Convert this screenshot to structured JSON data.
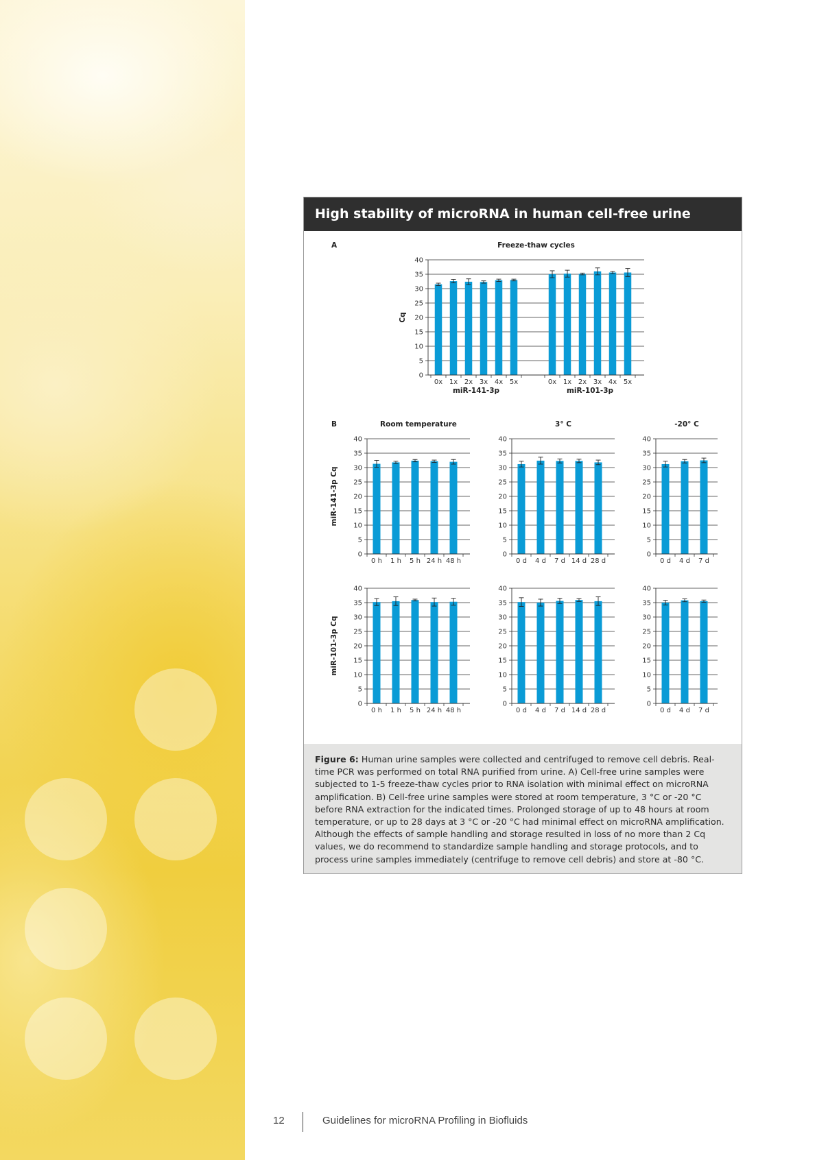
{
  "figure": {
    "header": "High stability of microRNA in human cell-free urine",
    "caption_label": "Figure 6:",
    "caption_text": " Human urine samples were collected and centrifuged to remove cell debris. Real-time PCR was performed on total RNA purified from urine. A) Cell-free urine samples were subjected to 1-5 freeze-thaw cycles prior to RNA isolation with minimal effect on microRNA amplification. B) Cell-free urine samples were stored at room temperature, 3 °C or -20 °C before RNA extraction for the indicated times. Prolonged storage of up to 48 hours at room temperature, or up to 28 days at 3 °C or -20 °C had minimal effect on microRNA amplification. Although the effects of sample handling and storage resulted in loss of no more than 2 Cq values, we do recommend to standardize sample handling and storage protocols, and to process urine samples immediately (centrifuge to remove cell debris) and store at -80 °C."
  },
  "footer": {
    "page_number": "12",
    "doc_title": "Guidelines for microRNA Profiling in Biofluids"
  },
  "colors": {
    "bar": "#0a9bd6",
    "header_bg": "#2f2f2f",
    "caption_bg": "#e4e4e3"
  },
  "chart_data": [
    {
      "id": "A",
      "panel_label": "A",
      "type": "bar",
      "title": "Freeze-thaw cycles",
      "ylabel": "Cq",
      "ylim": [
        0,
        40
      ],
      "yticks": [
        0,
        5,
        10,
        15,
        20,
        25,
        30,
        35,
        40
      ],
      "grid": true,
      "groups": [
        {
          "name": "miR-141-3p",
          "categories": [
            "0x",
            "1x",
            "2x",
            "3x",
            "4x",
            "5x"
          ],
          "values": [
            31.5,
            32.6,
            32.4,
            32.3,
            32.9,
            33.0
          ],
          "errors": [
            0.4,
            0.6,
            1.0,
            0.4,
            0.4,
            0.3
          ]
        },
        {
          "name": "miR-101-3p",
          "categories": [
            "0x",
            "1x",
            "2x",
            "3x",
            "4x",
            "5x"
          ],
          "values": [
            35.0,
            35.2,
            35.1,
            36.0,
            35.6,
            35.6
          ],
          "errors": [
            1.2,
            1.2,
            0.3,
            1.2,
            0.4,
            1.4
          ]
        }
      ]
    },
    {
      "id": "B-rt-141",
      "panel_label": "B",
      "type": "bar",
      "title": "Room temperature",
      "ylabel": "miR-141-3p Cq",
      "ylim": [
        0,
        40
      ],
      "yticks": [
        0,
        5,
        10,
        15,
        20,
        25,
        30,
        35,
        40
      ],
      "grid": true,
      "categories": [
        "0 h",
        "1 h",
        "5 h",
        "24 h",
        "48 h"
      ],
      "values": [
        31.3,
        31.8,
        32.4,
        32.2,
        32.0
      ],
      "errors": [
        1.2,
        0.4,
        0.4,
        0.4,
        0.8
      ]
    },
    {
      "id": "B-3c-141",
      "type": "bar",
      "title": "3° C",
      "ylim": [
        0,
        40
      ],
      "yticks": [
        0,
        5,
        10,
        15,
        20,
        25,
        30,
        35,
        40
      ],
      "grid": true,
      "categories": [
        "0 d",
        "4 d",
        "7 d",
        "14 d",
        "28 d"
      ],
      "values": [
        31.2,
        32.4,
        32.3,
        32.3,
        31.8
      ],
      "errors": [
        1.0,
        1.2,
        0.7,
        0.6,
        0.8
      ]
    },
    {
      "id": "B-m20-141",
      "type": "bar",
      "title": "-20° C",
      "ylim": [
        0,
        40
      ],
      "yticks": [
        0,
        5,
        10,
        15,
        20,
        25,
        30,
        35,
        40
      ],
      "grid": true,
      "categories": [
        "0 d",
        "4 d",
        "7 d"
      ],
      "values": [
        31.2,
        32.2,
        32.5
      ],
      "errors": [
        1.0,
        0.6,
        0.8
      ]
    },
    {
      "id": "B-rt-101",
      "type": "bar",
      "ylabel": "miR-101-3p Cq",
      "ylim": [
        0,
        40
      ],
      "yticks": [
        0,
        5,
        10,
        15,
        20,
        25,
        30,
        35,
        40
      ],
      "grid": true,
      "categories": [
        "0 h",
        "1 h",
        "5 h",
        "24 h",
        "48 h"
      ],
      "values": [
        35.2,
        35.5,
        35.9,
        35.2,
        35.3
      ],
      "errors": [
        1.2,
        1.5,
        0.3,
        1.4,
        1.2
      ]
    },
    {
      "id": "B-3c-101",
      "type": "bar",
      "ylim": [
        0,
        40
      ],
      "yticks": [
        0,
        5,
        10,
        15,
        20,
        25,
        30,
        35,
        40
      ],
      "grid": true,
      "categories": [
        "0 d",
        "4 d",
        "7 d",
        "14 d",
        "28 d"
      ],
      "values": [
        35.2,
        35.0,
        35.6,
        35.9,
        35.5
      ],
      "errors": [
        1.5,
        1.2,
        0.9,
        0.5,
        1.5
      ]
    },
    {
      "id": "B-m20-101",
      "type": "bar",
      "ylim": [
        0,
        40
      ],
      "yticks": [
        0,
        5,
        10,
        15,
        20,
        25,
        30,
        35,
        40
      ],
      "grid": true,
      "categories": [
        "0 d",
        "4 d",
        "7 d"
      ],
      "values": [
        35.0,
        35.8,
        35.5
      ],
      "errors": [
        0.8,
        0.5,
        0.4
      ]
    }
  ]
}
